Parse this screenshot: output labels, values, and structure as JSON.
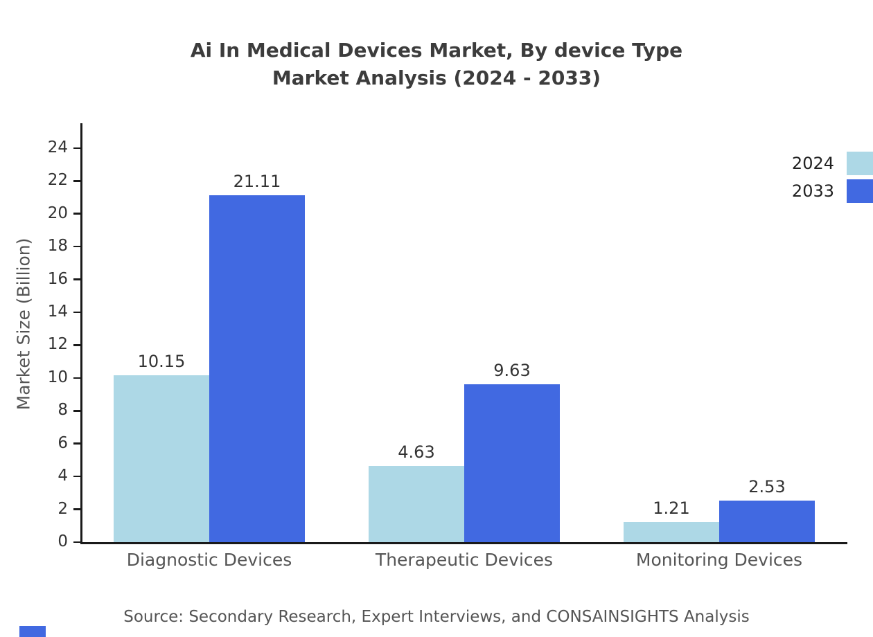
{
  "header": {
    "title_line1": "Ai In Medical Devices Market, By device Type",
    "title_line2": "Market Analysis (2024 - 2033)"
  },
  "footer": {
    "source": "Source: Secondary Research, Expert Interviews, and CONSAINSIGHTS Analysis"
  },
  "chart_data": {
    "type": "bar",
    "title": "Ai In Medical Devices Market, By device Type - Market Analysis (2024 - 2033)",
    "categories": [
      "Diagnostic Devices",
      "Therapeutic Devices",
      "Monitoring Devices"
    ],
    "series": [
      {
        "name": "2024",
        "color": "#add8e6",
        "values": [
          10.15,
          4.63,
          1.21
        ]
      },
      {
        "name": "2033",
        "color": "#4169e1",
        "values": [
          21.11,
          9.63,
          2.53
        ]
      }
    ],
    "xlabel": "",
    "ylabel": "Market Size (Billion)",
    "ylim": [
      0,
      25.3
    ],
    "yticks": [
      0,
      2,
      4,
      6,
      8,
      10,
      12,
      14,
      16,
      18,
      20,
      22,
      24
    ],
    "grid": false,
    "legend_position": "top-right",
    "value_labels": true
  },
  "colors": {
    "series_2024": "#add8e6",
    "series_2033": "#4169e1",
    "axis": "#1a1a1a",
    "title_text": "#3c3c3c",
    "muted_text": "#555555"
  }
}
